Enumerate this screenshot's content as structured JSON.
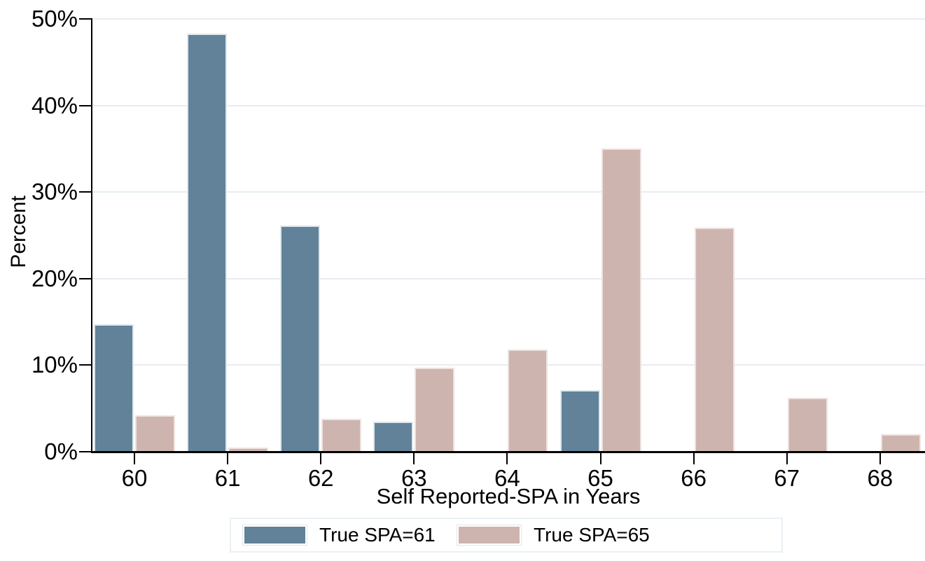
{
  "figure": {
    "background": "#ffffff"
  },
  "chart_data": {
    "type": "bar",
    "title": "",
    "xlabel": "Self Reported-SPA in Years",
    "ylabel": "Percent",
    "categories": [
      "60",
      "61",
      "62",
      "63",
      "64",
      "65",
      "66",
      "67",
      "68"
    ],
    "series": [
      {
        "name": "True SPA=61",
        "color": "#618298",
        "border_color": "#dde7ed",
        "values": [
          14.7,
          48.3,
          26.1,
          3.5,
          0,
          7.1,
          0,
          0,
          0
        ]
      },
      {
        "name": "True SPA=65",
        "color": "#cdb4af",
        "border_color": "#eee2de",
        "values": [
          4.2,
          0.5,
          3.8,
          9.7,
          11.8,
          35.0,
          25.9,
          6.2,
          2.0
        ]
      }
    ],
    "ylim": [
      0,
      50
    ],
    "ytick_values": [
      0,
      10,
      20,
      30,
      40,
      50
    ],
    "ytick_labels": [
      "0%",
      "10%",
      "20%",
      "30%",
      "40%",
      "50%"
    ],
    "grid": true,
    "gridline_color": "#e6edf2",
    "axis_color": "#000000",
    "legend_position": "bottom-center",
    "legend_border_color": "#e9f0f3"
  }
}
